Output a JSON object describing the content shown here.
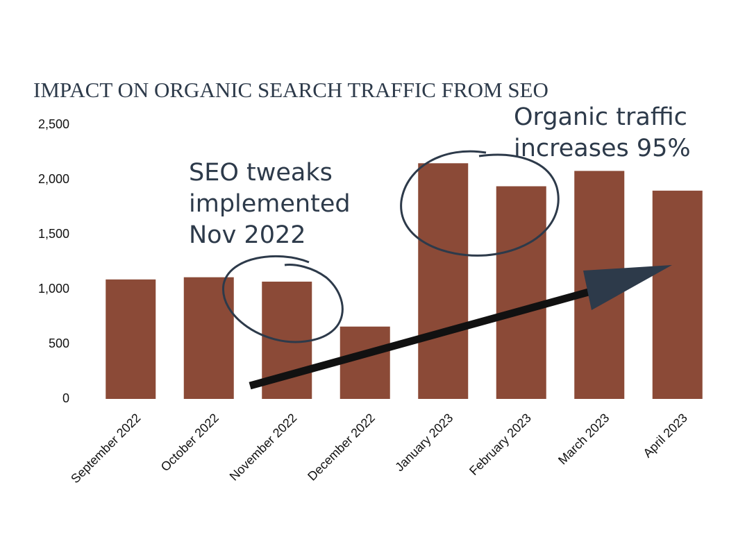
{
  "chart_data": {
    "type": "bar",
    "title": "IMPACT ON ORGANIC SEARCH TRAFFIC FROM SEO",
    "categories": [
      "September 2022",
      "October 2022",
      "November 2022",
      "December 2022",
      "January 2023",
      "February 2023",
      "March 2023",
      "April 2023"
    ],
    "values": [
      1090,
      1110,
      1070,
      660,
      2150,
      1940,
      2080,
      1900
    ],
    "color": "#8b4a37",
    "ylim": [
      0,
      2500
    ],
    "yticks": [
      0,
      {
        "value": 500,
        "label": "500"
      },
      {
        "value": 1000,
        "label": "1,000"
      },
      {
        "value": 1500,
        "label": "1,500"
      },
      {
        "value": 2000,
        "label": "2,000"
      },
      {
        "value": 2500,
        "label": "2,500"
      }
    ],
    "grid": false,
    "annotations": [
      {
        "lines": [
          "SEO tweaks",
          "implemented",
          "Nov 2022"
        ]
      },
      {
        "lines": [
          "Organic traffic",
          "increases 95%"
        ]
      }
    ]
  }
}
